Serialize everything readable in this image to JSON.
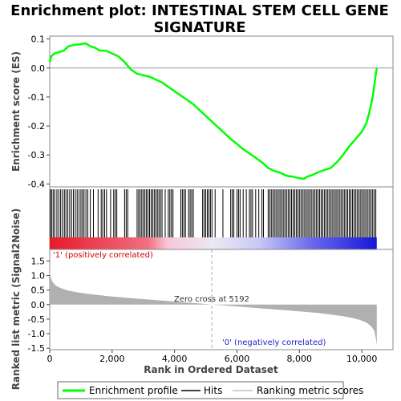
{
  "title_line1": "Enrichment plot: INTESTINAL STEM CELL GENE",
  "title_line2": "SIGNATURE",
  "chart_data": {
    "type": "line",
    "n_genes": 10480,
    "es_panel": {
      "ylabel": "Enrichment score (ES)",
      "ylim": [
        -0.41,
        0.11
      ],
      "yticks": [
        "0.1",
        "0.0",
        "-0.1",
        "-0.2",
        "-0.3",
        "-0.4"
      ],
      "ytick_values": [
        0.1,
        0.0,
        -0.1,
        -0.2,
        -0.3,
        -0.4
      ],
      "series": [
        {
          "name": "Enrichment profile",
          "color": "#00ff00",
          "x": [
            0,
            50,
            150,
            300,
            450,
            600,
            800,
            1000,
            1150,
            1300,
            1450,
            1600,
            1800,
            2000,
            2200,
            2400,
            2600,
            2800,
            3000,
            3200,
            3400,
            3600,
            3800,
            4000,
            4200,
            4400,
            4600,
            4800,
            5000,
            5200,
            5400,
            5600,
            5800,
            6000,
            6200,
            6400,
            6600,
            6800,
            7000,
            7200,
            7400,
            7600,
            7800,
            8000,
            8150,
            8250,
            8400,
            8600,
            8800,
            9000,
            9200,
            9400,
            9600,
            9800,
            10000,
            10150,
            10250,
            10350,
            10400,
            10450,
            10480
          ],
          "y": [
            0.02,
            0.04,
            0.05,
            0.055,
            0.06,
            0.075,
            0.08,
            0.082,
            0.085,
            0.075,
            0.07,
            0.06,
            0.06,
            0.05,
            0.04,
            0.02,
            -0.005,
            -0.02,
            -0.025,
            -0.03,
            -0.04,
            -0.05,
            -0.065,
            -0.08,
            -0.095,
            -0.11,
            -0.125,
            -0.145,
            -0.165,
            -0.185,
            -0.205,
            -0.225,
            -0.245,
            -0.262,
            -0.28,
            -0.295,
            -0.31,
            -0.325,
            -0.345,
            -0.355,
            -0.362,
            -0.372,
            -0.375,
            -0.38,
            -0.382,
            -0.375,
            -0.37,
            -0.36,
            -0.352,
            -0.345,
            -0.325,
            -0.3,
            -0.27,
            -0.245,
            -0.22,
            -0.19,
            -0.15,
            -0.1,
            -0.06,
            -0.02,
            0.0
          ]
        }
      ]
    },
    "hits_panel": {
      "series_name": "Hits",
      "positions": [
        20,
        60,
        110,
        160,
        230,
        290,
        350,
        410,
        470,
        520,
        580,
        640,
        700,
        760,
        820,
        880,
        940,
        1000,
        1050,
        1100,
        1160,
        1220,
        1300,
        1400,
        1550,
        1650,
        1700,
        1760,
        1820,
        1950,
        2050,
        2100,
        2150,
        2400,
        2450,
        2500,
        2800,
        2850,
        2900,
        2950,
        3000,
        3050,
        3100,
        3150,
        3200,
        3250,
        3300,
        3350,
        3400,
        3450,
        3500,
        3550,
        3600,
        3700,
        3800,
        3850,
        3900,
        3950,
        4200,
        4250,
        4300,
        4350,
        4450,
        4500,
        4550,
        4600,
        4900,
        4950,
        5000,
        5050,
        5100,
        5150,
        5200,
        5300,
        5550,
        5800,
        5850,
        5900,
        6000,
        6050,
        6100,
        6200,
        6300,
        6400,
        6450,
        6500,
        6600,
        6700,
        6800,
        6850,
        7000,
        7050,
        7100,
        7150,
        7200,
        7250,
        7300,
        7350,
        7400,
        7450,
        7500,
        7550,
        7600,
        7650,
        7700,
        7750,
        7800,
        7850,
        7900,
        7950,
        8000,
        8050,
        8100,
        8150,
        8200,
        8250,
        8300,
        8350,
        8400,
        8450,
        8500,
        8550,
        8600,
        8650,
        8700,
        8750,
        8800,
        8850,
        8900,
        8950,
        9000,
        9050,
        9100,
        9150,
        9200,
        9250,
        9300,
        9350,
        9400,
        9450,
        9500,
        9550,
        9600,
        9650,
        9700,
        9750,
        9800,
        9850,
        9900,
        9950,
        10000,
        10050,
        10100,
        10150,
        10200,
        10250,
        10300,
        10350,
        10400,
        10450
      ]
    },
    "metric_panel": {
      "ylabel": "Ranked list metric (Signal2Noise)",
      "ylim": [
        -1.55,
        1.9
      ],
      "yticks": [
        "1.5",
        "1.0",
        "0.5",
        "0.0",
        "-0.5",
        "-1.0",
        "-1.5"
      ],
      "ytick_values": [
        1.5,
        1.0,
        0.5,
        0.0,
        -0.5,
        -1.0,
        -1.5
      ],
      "series_name": "Ranking metric scores",
      "color": "#b0b0b0",
      "x": [
        0,
        30,
        80,
        150,
        250,
        400,
        600,
        900,
        1300,
        1800,
        2400,
        3000,
        3600,
        4200,
        4800,
        5192,
        5600,
        6200,
        6800,
        7400,
        8000,
        8600,
        9000,
        9400,
        9700,
        9950,
        10150,
        10300,
        10400,
        10450,
        10480
      ],
      "y": [
        1.2,
        0.95,
        0.8,
        0.7,
        0.62,
        0.55,
        0.48,
        0.42,
        0.36,
        0.3,
        0.24,
        0.19,
        0.14,
        0.09,
        0.04,
        0.0,
        -0.03,
        -0.08,
        -0.13,
        -0.18,
        -0.23,
        -0.29,
        -0.34,
        -0.4,
        -0.46,
        -0.53,
        -0.62,
        -0.75,
        -0.9,
        -1.15,
        -1.4
      ],
      "zero_cross_label": "Zero cross at 5192",
      "zero_cross": 5192,
      "pos_label": "'1' (positively correlated)",
      "neg_label": "'0' (negatively correlated)"
    },
    "xlabel": "Rank in Ordered Dataset",
    "xlim": [
      0,
      11000
    ],
    "xticks": [
      "0",
      "2,000",
      "4,000",
      "6,000",
      "8,000",
      "10,000"
    ],
    "xtick_values": [
      0,
      2000,
      4000,
      6000,
      8000,
      10000
    ],
    "legend": {
      "placement": "bottom",
      "items": [
        "Enrichment profile",
        "Hits",
        "Ranking metric scores"
      ]
    }
  }
}
